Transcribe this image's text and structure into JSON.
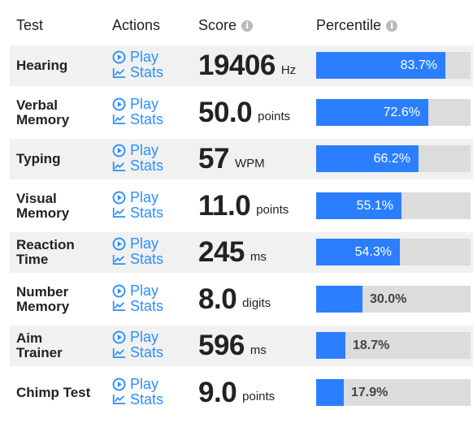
{
  "header": {
    "test": "Test",
    "actions": "Actions",
    "score": "Score",
    "percentile": "Percentile",
    "info_icon_glyph": "i"
  },
  "action_labels": {
    "play": "Play",
    "stats": "Stats"
  },
  "colors": {
    "accent": "#2b7fff",
    "link": "#2b8fff",
    "track": "#dcdcdc",
    "row_shade": "#f1f1f1"
  },
  "rows": [
    {
      "name_line1": "Hearing",
      "name_line2": "",
      "score": "19406",
      "unit": "Hz",
      "percentile": 83.7,
      "percentile_label": "83.7%"
    },
    {
      "name_line1": "Verbal",
      "name_line2": "Memory",
      "score": "50.0",
      "unit": "points",
      "percentile": 72.6,
      "percentile_label": "72.6%"
    },
    {
      "name_line1": "Typing",
      "name_line2": "",
      "score": "57",
      "unit": "WPM",
      "percentile": 66.2,
      "percentile_label": "66.2%"
    },
    {
      "name_line1": "Visual",
      "name_line2": "Memory",
      "score": "11.0",
      "unit": "points",
      "percentile": 55.1,
      "percentile_label": "55.1%"
    },
    {
      "name_line1": "Reaction",
      "name_line2": "Time",
      "score": "245",
      "unit": "ms",
      "percentile": 54.3,
      "percentile_label": "54.3%"
    },
    {
      "name_line1": "Number",
      "name_line2": "Memory",
      "score": "8.0",
      "unit": "digits",
      "percentile": 30.0,
      "percentile_label": "30.0%"
    },
    {
      "name_line1": "Aim",
      "name_line2": "Trainer",
      "score": "596",
      "unit": "ms",
      "percentile": 18.7,
      "percentile_label": "18.7%"
    },
    {
      "name_line1": "Chimp Test",
      "name_line2": "",
      "score": "9.0",
      "unit": "points",
      "percentile": 17.9,
      "percentile_label": "17.9%"
    }
  ]
}
